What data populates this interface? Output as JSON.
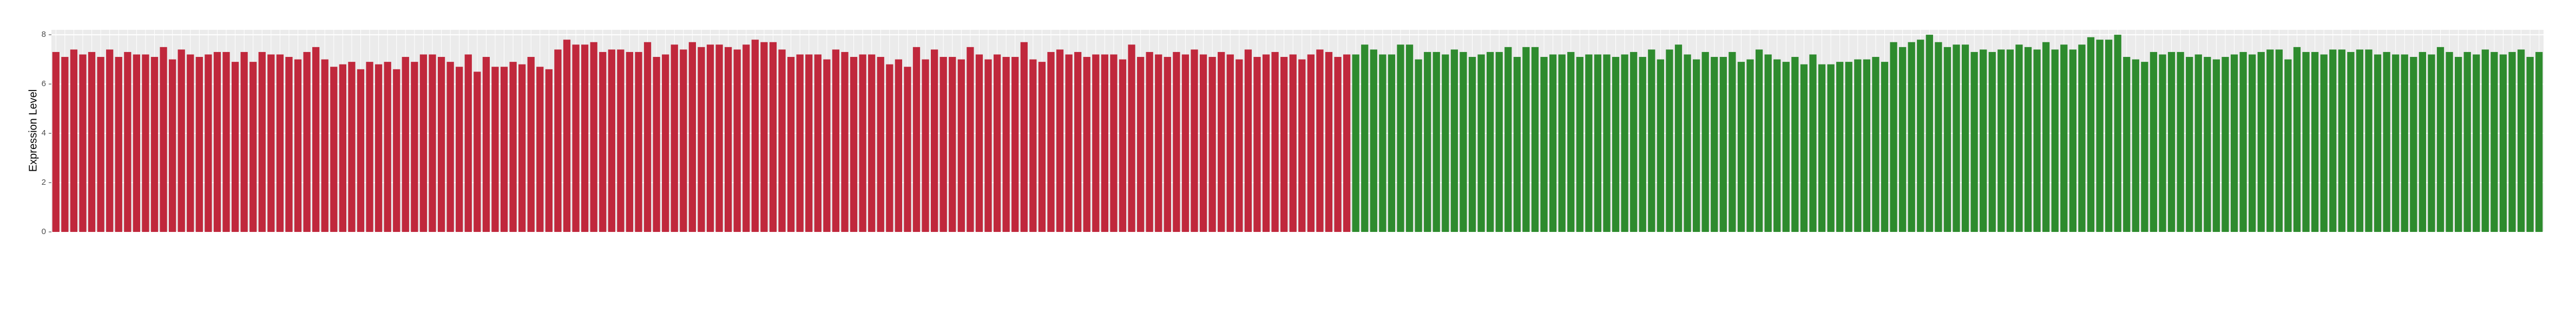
{
  "chart_data": {
    "type": "bar",
    "y_label": "Expression Level",
    "ylim": [
      0,
      8.2
    ],
    "yticks": [
      0,
      2,
      4,
      6,
      8
    ],
    "grid": true,
    "series": [
      {
        "color": "#c0283c",
        "values": [
          7.3,
          7.1,
          7.4,
          7.2,
          7.3,
          7.1,
          7.4,
          7.1,
          7.3,
          7.2,
          7.2,
          7.1,
          7.5,
          7.0,
          7.4,
          7.2,
          7.1,
          7.2,
          7.3,
          7.3,
          6.9,
          7.3,
          6.9,
          7.3,
          7.2,
          7.2,
          7.1,
          7.0,
          7.3,
          7.5,
          7.0,
          6.7,
          6.8,
          6.9,
          6.6,
          6.9,
          6.8,
          6.9,
          6.6,
          7.1,
          6.9,
          7.2,
          7.2,
          7.1,
          6.9,
          6.7,
          7.2,
          6.5,
          7.1,
          6.7,
          6.7,
          6.9,
          6.8,
          7.1,
          6.7,
          6.6,
          7.4,
          7.8,
          7.6,
          7.6,
          7.7,
          7.3,
          7.4,
          7.4,
          7.3,
          7.3,
          7.7,
          7.1,
          7.2,
          7.6,
          7.4,
          7.7,
          7.5,
          7.6,
          7.6,
          7.5,
          7.4,
          7.6,
          7.8,
          7.7,
          7.7,
          7.4,
          7.1,
          7.2,
          7.2,
          7.2,
          7.0,
          7.4,
          7.3,
          7.1,
          7.2,
          7.2,
          7.1,
          6.8,
          7.0,
          6.7,
          7.5,
          7.0,
          7.4,
          7.1,
          7.1,
          7.0,
          7.5,
          7.2,
          7.0,
          7.2,
          7.1,
          7.1,
          7.7,
          7.0,
          6.9,
          7.3,
          7.4,
          7.2,
          7.3,
          7.1,
          7.2,
          7.2,
          7.2,
          7.0,
          7.6,
          7.1,
          7.3,
          7.2,
          7.1,
          7.3,
          7.2,
          7.4,
          7.2,
          7.1,
          7.3,
          7.2,
          7.0,
          7.4,
          7.1,
          7.2,
          7.3,
          7.1,
          7.2,
          7.0,
          7.2,
          7.4,
          7.3,
          7.1,
          7.2
        ]
      },
      {
        "color": "#2e8b2e",
        "values": [
          7.2,
          7.6,
          7.4,
          7.2,
          7.2,
          7.6,
          7.6,
          7.0,
          7.3,
          7.3,
          7.2,
          7.4,
          7.3,
          7.1,
          7.2,
          7.3,
          7.3,
          7.5,
          7.1,
          7.5,
          7.5,
          7.1,
          7.2,
          7.2,
          7.3,
          7.1,
          7.2,
          7.2,
          7.2,
          7.1,
          7.2,
          7.3,
          7.1,
          7.4,
          7.0,
          7.4,
          7.6,
          7.2,
          7.0,
          7.3,
          7.1,
          7.1,
          7.3,
          6.9,
          7.0,
          7.4,
          7.2,
          7.0,
          6.9,
          7.1,
          6.8,
          7.2,
          6.8,
          6.8,
          6.9,
          6.9,
          7.0,
          7.0,
          7.1,
          6.9,
          7.7,
          7.5,
          7.7,
          7.8,
          8.0,
          7.7,
          7.5,
          7.6,
          7.6,
          7.3,
          7.4,
          7.3,
          7.4,
          7.4,
          7.6,
          7.5,
          7.4,
          7.7,
          7.4,
          7.6,
          7.4,
          7.6,
          7.9,
          7.8,
          7.8,
          8.0,
          7.1,
          7.0,
          6.9,
          7.3,
          7.2,
          7.3,
          7.3,
          7.1,
          7.2,
          7.1,
          7.0,
          7.1,
          7.2,
          7.3,
          7.2,
          7.3,
          7.4,
          7.4,
          7.0,
          7.5,
          7.3,
          7.3,
          7.2,
          7.4,
          7.4,
          7.3,
          7.4,
          7.4,
          7.2,
          7.3,
          7.2,
          7.2,
          7.1,
          7.3,
          7.2,
          7.5,
          7.3,
          7.1,
          7.3,
          7.2,
          7.4,
          7.3,
          7.2,
          7.3,
          7.4,
          7.1,
          7.3
        ]
      }
    ]
  }
}
